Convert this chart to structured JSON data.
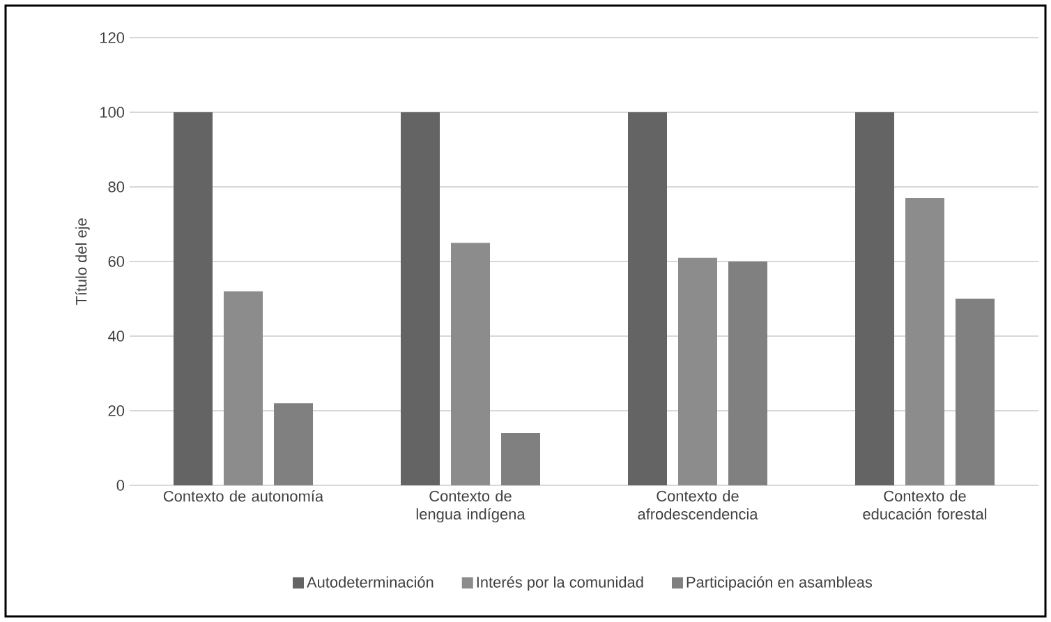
{
  "chart_data": {
    "type": "bar",
    "ylabel": "Título del eje",
    "categories": [
      "Contexto de autonomía",
      "Contexto de lengua indígena",
      "Contexto de afrodescendencia",
      "Contexto de educación forestal"
    ],
    "series": [
      {
        "name": "Autodeterminación",
        "color": "#646464",
        "values": [
          100,
          100,
          100,
          100
        ]
      },
      {
        "name": "Interés por la comunidad",
        "color": "#8c8c8c",
        "values": [
          52,
          65,
          61,
          77
        ]
      },
      {
        "name": "Participación en asambleas",
        "color": "#808080",
        "values": [
          22,
          14,
          60,
          50
        ]
      }
    ],
    "ylim": [
      0,
      120
    ],
    "yticks": [
      0,
      20,
      40,
      60,
      80,
      100,
      120
    ],
    "grid": "y",
    "legend": "bottom"
  }
}
